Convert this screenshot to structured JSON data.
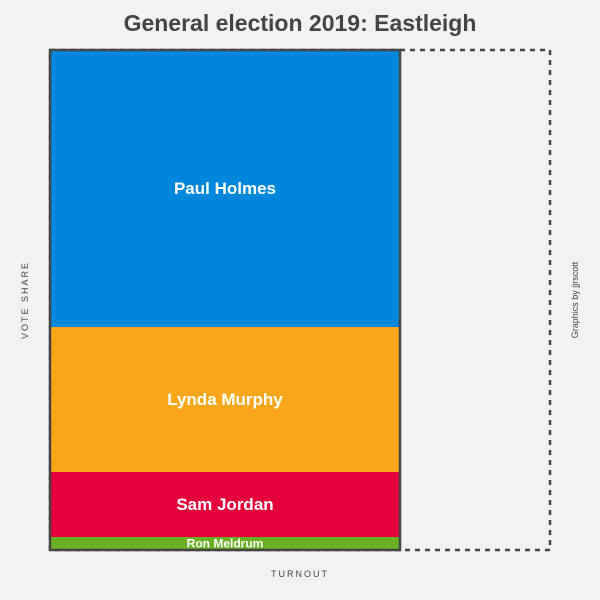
{
  "chart_data": {
    "type": "bar",
    "title": "General election 2019: Eastleigh",
    "xlabel": "TURNOUT",
    "ylabel": "VOTE SHARE",
    "credit": "Graphics by jjrscott",
    "turnout": 0.7,
    "categories": [
      "Paul Holmes",
      "Lynda Murphy",
      "Sam Jordan",
      "Ron Meldrum"
    ],
    "values": [
      55.4,
      29.0,
      13.0,
      2.6
    ],
    "colors": [
      "#0087dc",
      "#faa61a",
      "#e4003b",
      "#6ab023"
    ],
    "ylim": [
      0,
      100
    ],
    "xlim": [
      0,
      1
    ]
  }
}
